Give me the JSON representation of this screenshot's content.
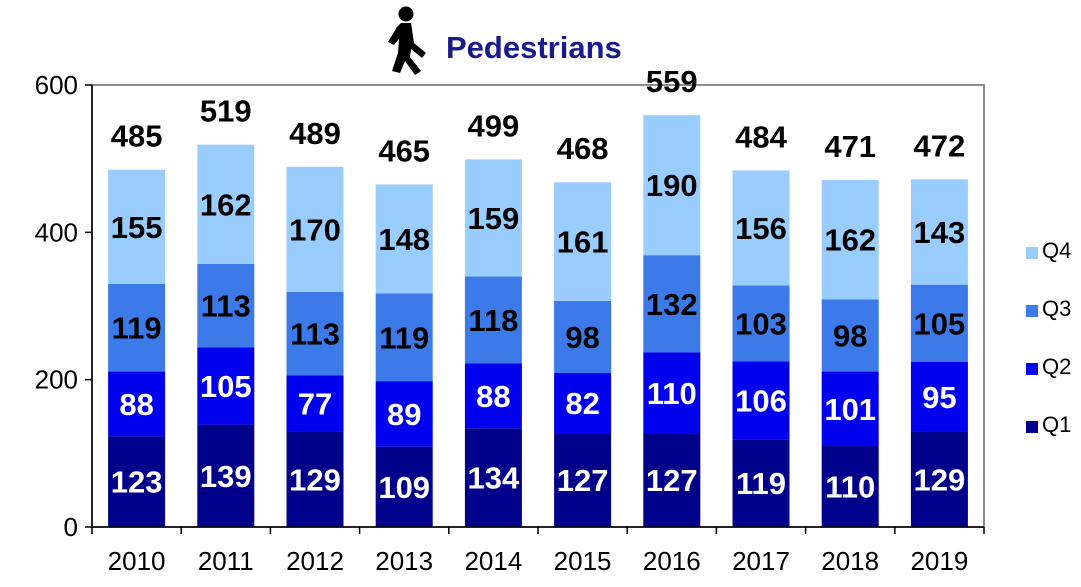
{
  "chart_data": {
    "type": "bar",
    "stacked": true,
    "title": "Pedestrians",
    "title_icon": "pedestrian-walking-icon",
    "categories": [
      "2010",
      "2011",
      "2012",
      "2013",
      "2014",
      "2015",
      "2016",
      "2017",
      "2018",
      "2019"
    ],
    "series": [
      {
        "name": "Q1",
        "color": "#00008b",
        "label_color": "#ffffff",
        "values": [
          123,
          139,
          129,
          109,
          134,
          127,
          127,
          119,
          110,
          129
        ]
      },
      {
        "name": "Q2",
        "color": "#0000ee",
        "label_color": "#ffffff",
        "values": [
          88,
          105,
          77,
          89,
          88,
          82,
          110,
          106,
          101,
          95
        ]
      },
      {
        "name": "Q3",
        "color": "#3b7ae8",
        "label_color": "#000000",
        "values": [
          119,
          113,
          113,
          119,
          118,
          98,
          132,
          103,
          98,
          105
        ]
      },
      {
        "name": "Q4",
        "color": "#99ccff",
        "label_color": "#000000",
        "values": [
          155,
          162,
          170,
          148,
          159,
          161,
          190,
          156,
          162,
          143
        ]
      }
    ],
    "totals": [
      485,
      519,
      489,
      465,
      499,
      468,
      559,
      484,
      471,
      472
    ],
    "ylim": [
      0,
      600
    ],
    "yticks": [
      0,
      200,
      400,
      600
    ],
    "xlabel": "",
    "ylabel": "",
    "grid": false,
    "legend_position": "right",
    "legend_order": [
      "Q4",
      "Q3",
      "Q2",
      "Q1"
    ]
  }
}
